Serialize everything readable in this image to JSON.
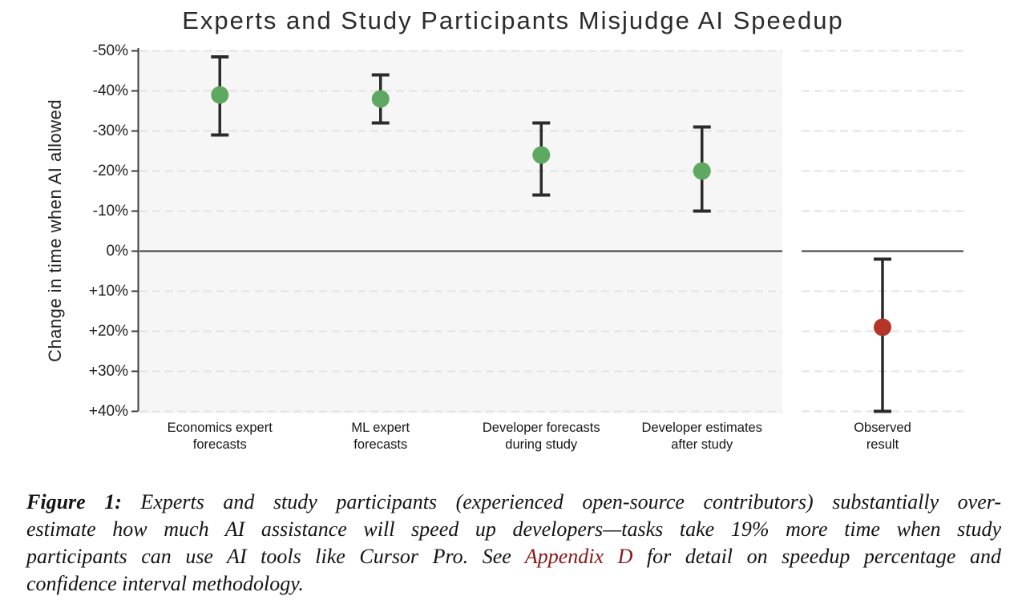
{
  "title": "Experts and Study Participants Misjudge AI Speedup",
  "colors": {
    "green_marker": "#5fa862",
    "red_marker": "#b5342a",
    "error_bar": "#2b2b2b",
    "zero_line": "#3c3c3c",
    "gridline": "#e3e3e3",
    "panel_main_bg": "#f6f6f6",
    "panel_right_bg": "#ffffff",
    "axis": "#3c3c3c",
    "link_red": "#8b1414"
  },
  "chart_data": {
    "type": "scatter",
    "title": "Experts and Study Participants Misjudge AI Speedup",
    "ylabel": "Change in time when AI allowed",
    "ylim": [
      -50,
      40
    ],
    "y_axis_note": "inverted axis: -50% at top, +40% at bottom; values are percent change in completion time",
    "yticks": [
      -50,
      -40,
      -30,
      -20,
      -10,
      0,
      10,
      20,
      30,
      40
    ],
    "ytick_labels": [
      "-50%",
      "-40%",
      "-30%",
      "-20%",
      "-10%",
      "0%",
      "+10%",
      "+20%",
      "+30%",
      "+40%"
    ],
    "grid": "horizontal dashed",
    "zero_line": true,
    "legend_position": "none",
    "points": [
      {
        "label_lines": [
          "Economics expert",
          "forecasts"
        ],
        "value": -39,
        "ci": [
          -48.5,
          -29
        ],
        "color": "green_marker",
        "panel": "main",
        "pos": 0.125
      },
      {
        "label_lines": [
          "ML expert",
          "forecasts"
        ],
        "value": -38,
        "ci": [
          -44,
          -32
        ],
        "color": "green_marker",
        "panel": "main",
        "pos": 0.375
      },
      {
        "label_lines": [
          "Developer forecasts",
          "during study"
        ],
        "value": -24,
        "ci": [
          -32,
          -14
        ],
        "color": "green_marker",
        "panel": "main",
        "pos": 0.625
      },
      {
        "label_lines": [
          "Developer estimates",
          "after study"
        ],
        "value": -20,
        "ci": [
          -31,
          -10
        ],
        "color": "green_marker",
        "panel": "main",
        "pos": 0.875
      },
      {
        "label_lines": [
          "Observed",
          "result"
        ],
        "value": 19,
        "ci": [
          2,
          40
        ],
        "color": "red_marker",
        "panel": "right",
        "pos": 0.5
      }
    ]
  },
  "caption": {
    "lines": [
      {
        "just": true,
        "segments": [
          {
            "t": "Figure 1:",
            "bold": true
          },
          {
            "t": " Experts and study participants (experienced open-source contributors) substantially over-"
          }
        ]
      },
      {
        "just": true,
        "segments": [
          {
            "t": "estimate how much AI assistance will speed up developers—tasks take 19% more time when study"
          }
        ]
      },
      {
        "just": true,
        "segments": [
          {
            "t": "participants can use AI tools like Cursor Pro. See "
          },
          {
            "t": "Appendix D",
            "link": true
          },
          {
            "t": " for detail on speedup percentage and"
          }
        ]
      },
      {
        "just": false,
        "segments": [
          {
            "t": "confidence interval methodology."
          }
        ]
      }
    ]
  }
}
